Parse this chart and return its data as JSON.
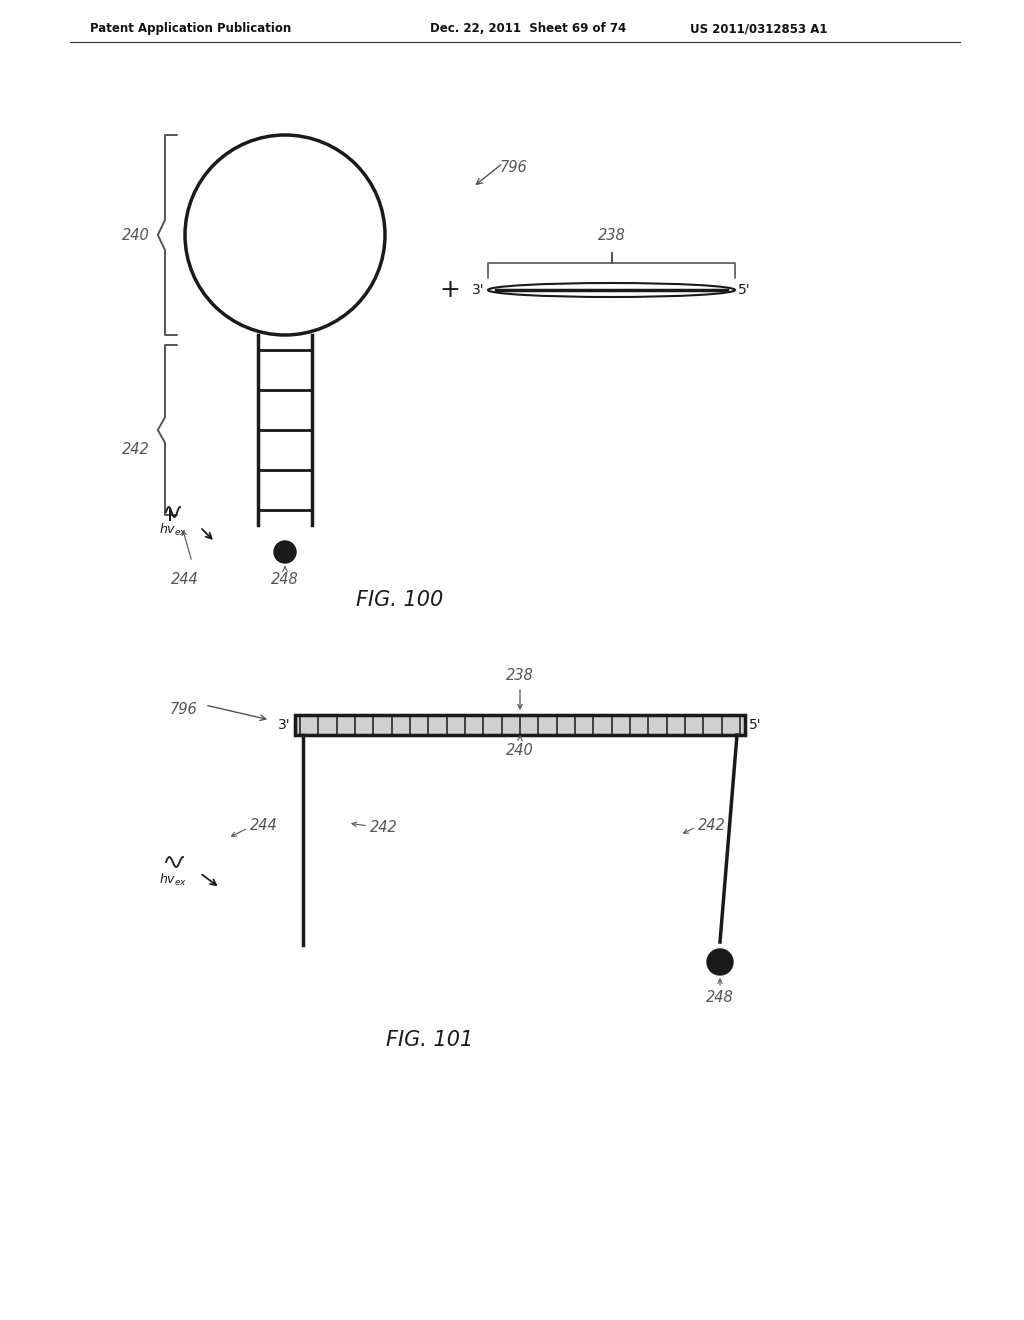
{
  "bg_color": "#ffffff",
  "line_color": "#1a1a1a",
  "header_left": "Patent Application Publication",
  "header_mid": "Dec. 22, 2011  Sheet 69 of 74",
  "header_right": "US 2011/0312853 A1",
  "fig100_title": "FIG. 100",
  "fig101_title": "FIG. 101",
  "label_color": "#555555",
  "label_fontsize": 10.5,
  "title_fontsize": 15
}
